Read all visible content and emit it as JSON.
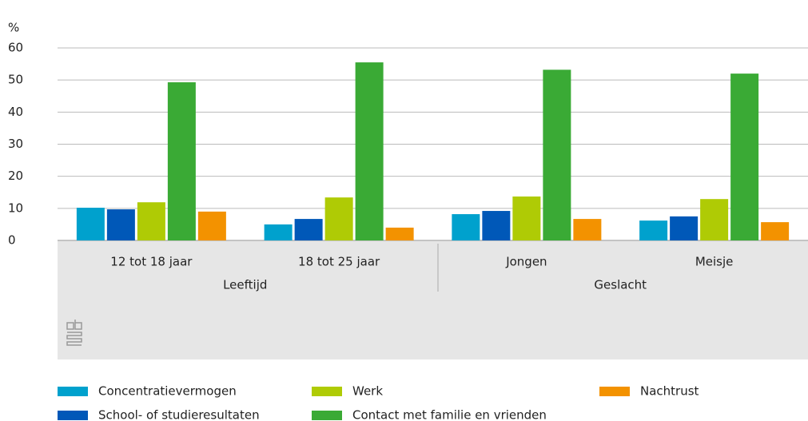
{
  "chart_data": {
    "type": "bar",
    "y_label": "%",
    "categories": [
      "12 tot 18 jaar",
      "18 tot 25 jaar",
      "Jongen",
      "Meisje"
    ],
    "groups": [
      "Leeftijd",
      "Geslacht"
    ],
    "series": [
      {
        "name": "Concentratievermogen",
        "color": "#00a1cd",
        "values": [
          10.2,
          5.0,
          8.2,
          6.2
        ]
      },
      {
        "name": "School- of studieresultaten",
        "color": "#0058b8",
        "values": [
          9.7,
          6.7,
          9.2,
          7.5
        ]
      },
      {
        "name": "Werk",
        "color": "#afcb05",
        "values": [
          11.9,
          13.4,
          13.7,
          12.9
        ]
      },
      {
        "name": "Contact met familie en vrienden",
        "color": "#3aaa35",
        "values": [
          49.3,
          55.5,
          53.2,
          52.0
        ]
      },
      {
        "name": "Nachtrust",
        "color": "#f39200",
        "values": [
          9.0,
          4.0,
          6.7,
          5.7
        ]
      }
    ],
    "ylim": [
      0,
      60
    ],
    "yticks": [
      0,
      10,
      20,
      30,
      40,
      50,
      60
    ],
    "grid": true
  }
}
